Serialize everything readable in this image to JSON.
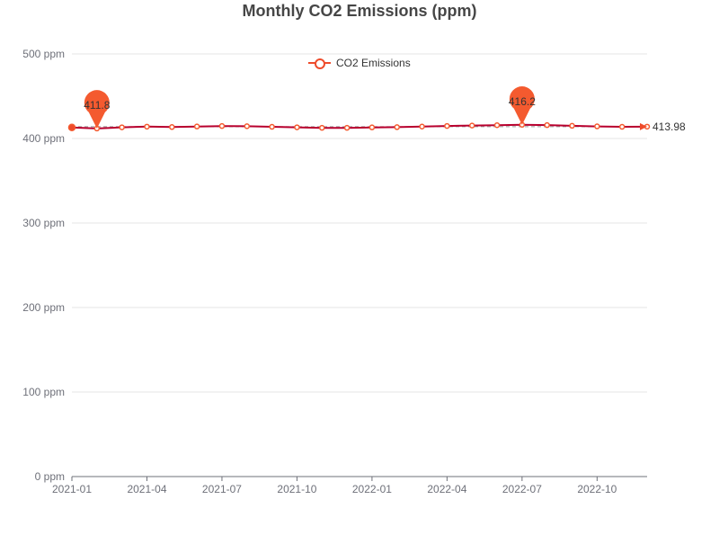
{
  "title": "Monthly CO2 Emissions (ppm)",
  "legend": {
    "label": "CO2 Emissions"
  },
  "colors": {
    "series": "#ee4b2b",
    "line": "#b8002e",
    "marker": "#f45a2f",
    "axis": "#6e7079",
    "grid": "#e6e6e6",
    "text": "#6e7079"
  },
  "chart_data": {
    "type": "line",
    "title": "Monthly CO2 Emissions (ppm)",
    "xlabel": "",
    "ylabel": "",
    "ylim": [
      0,
      500
    ],
    "yticks": [
      0,
      100,
      200,
      300,
      400,
      500
    ],
    "ytick_labels": [
      "0 ppm",
      "100 ppm",
      "200 ppm",
      "300 ppm",
      "400 ppm",
      "500 ppm"
    ],
    "xtick_labels": [
      "2021-01",
      "2021-04",
      "2021-07",
      "2021-10",
      "2022-01",
      "2022-04",
      "2022-07",
      "2022-10"
    ],
    "grid": true,
    "legend_position": "top-center",
    "series": [
      {
        "name": "CO2 Emissions",
        "x": [
          "2021-01",
          "2021-02",
          "2021-03",
          "2021-04",
          "2021-05",
          "2021-06",
          "2021-07",
          "2021-08",
          "2021-09",
          "2021-10",
          "2021-11",
          "2021-12",
          "2022-01",
          "2022-02",
          "2022-03",
          "2022-04",
          "2022-05",
          "2022-06",
          "2022-07",
          "2022-08",
          "2022-09",
          "2022-10",
          "2022-11",
          "2022-12"
        ],
        "values": [
          413.0,
          411.8,
          413.2,
          414.0,
          413.5,
          414.2,
          414.7,
          414.5,
          413.8,
          413.2,
          412.6,
          412.6,
          413.1,
          413.4,
          414.1,
          414.8,
          415.3,
          415.7,
          416.2,
          415.8,
          415.0,
          414.3,
          413.8,
          413.98
        ]
      }
    ],
    "markers": [
      {
        "type": "min",
        "x": "2021-02",
        "value": 411.8,
        "label": "411.8"
      },
      {
        "type": "max",
        "x": "2022-07",
        "value": 416.2,
        "label": "416.2"
      }
    ],
    "end_label": "413.98"
  }
}
